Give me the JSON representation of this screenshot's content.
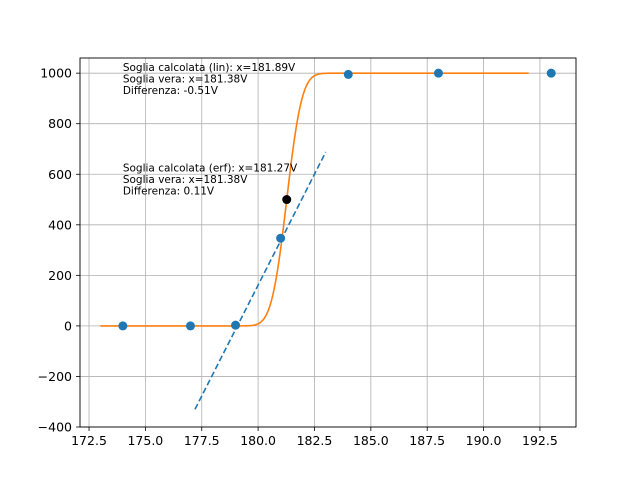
{
  "chart_data": {
    "type": "scatter",
    "title": "",
    "xlabel": "",
    "ylabel": "",
    "xlim": [
      172.1,
      194.1
    ],
    "ylim": [
      -400,
      1060
    ],
    "grid": true,
    "x_ticks": [
      172.5,
      175.0,
      177.5,
      180.0,
      182.5,
      185.0,
      187.5,
      190.0,
      192.5
    ],
    "x_tick_labels": [
      "172.5",
      "175.0",
      "177.5",
      "180.0",
      "182.5",
      "185.0",
      "187.5",
      "190.0",
      "192.5"
    ],
    "y_ticks": [
      -400,
      -200,
      0,
      200,
      400,
      600,
      800,
      1000
    ],
    "y_tick_labels": [
      "−400",
      "−200",
      "0",
      "200",
      "400",
      "600",
      "800",
      "1000"
    ],
    "series": [
      {
        "kind": "scatter",
        "color": "#1f77b4",
        "points": [
          {
            "x": 174,
            "y": 0
          },
          {
            "x": 177,
            "y": 0
          },
          {
            "x": 179,
            "y": 3
          },
          {
            "x": 181,
            "y": 347
          },
          {
            "x": 184,
            "y": 995
          },
          {
            "x": 188,
            "y": 1000
          },
          {
            "x": 193,
            "y": 1000
          }
        ]
      },
      {
        "kind": "scatter",
        "color": "#000000",
        "points": [
          {
            "x": 181.27,
            "y": 500
          }
        ]
      },
      {
        "kind": "line",
        "style": "dashed",
        "color": "#1f77b4",
        "points": [
          {
            "x": 177.2,
            "y": -330
          },
          {
            "x": 183.0,
            "y": 688
          }
        ]
      },
      {
        "kind": "line",
        "style": "solid",
        "color": "#ff7f0e",
        "function": "erf",
        "x_range": [
          173,
          192
        ],
        "params": {
          "amplitude": 500,
          "center": 181.27,
          "width": 0.75
        }
      }
    ],
    "annotations": [
      {
        "x": 174,
        "y": 1008,
        "lines": [
          "Soglia calcolata (lin): x=181.89V",
          "Soglia vera: x=181.38V",
          "Differenza: -0.51V"
        ]
      },
      {
        "x": 174,
        "y": 610,
        "lines": [
          "Soglia calcolata (erf): x=181.27V",
          "Soglia vera: x=181.38V",
          "Differenza: 0.11V"
        ]
      }
    ]
  }
}
